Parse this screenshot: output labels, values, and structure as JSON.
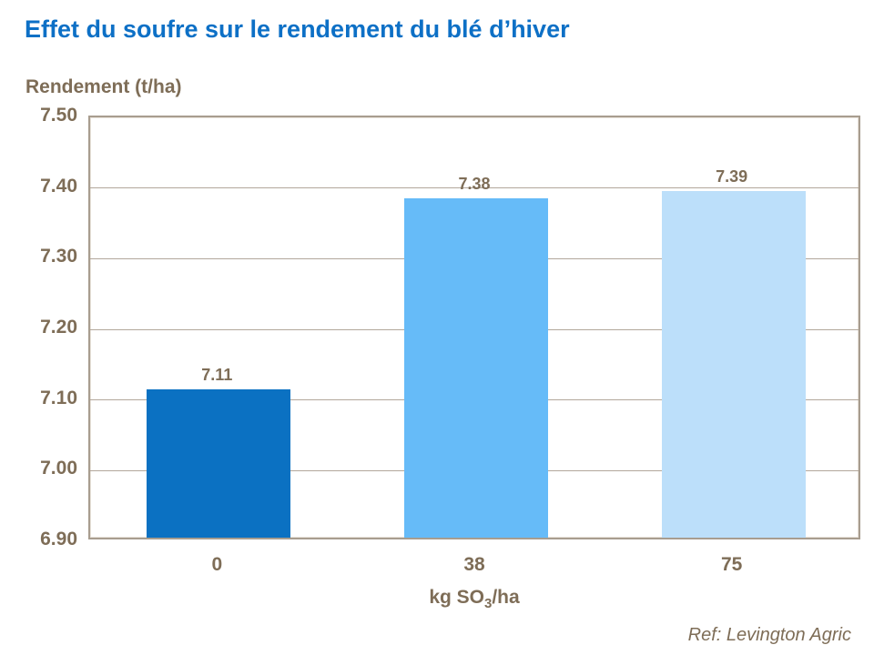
{
  "title": "Effet du soufre sur le rendement du blé d’hiver",
  "y_axis_title": "Rendement (t/ha)",
  "x_axis_title": {
    "prefix": "kg SO",
    "sub": "3",
    "suffix": "/ha"
  },
  "ref_note": "Ref: Levington Agric",
  "colors": {
    "title": "#0d70c6",
    "text": "#7e6d57",
    "grid": "#b2a79b",
    "plot_border": "#a89d8f",
    "background": "#ffffff"
  },
  "chart_data": {
    "type": "bar",
    "title": "Effet du soufre sur le rendement du blé d’hiver",
    "categories": [
      "0",
      "38",
      "75"
    ],
    "values": [
      7.11,
      7.38,
      7.39
    ],
    "value_labels": [
      "7.11",
      "7.38",
      "7.39"
    ],
    "bar_colors": [
      "#0b71c2",
      "#66bbf8",
      "#bcdffa"
    ],
    "xlabel": "kg SO3/ha",
    "ylabel": "Rendement (t/ha)",
    "ylim": [
      6.9,
      7.5
    ],
    "yticks": [
      7.5,
      7.4,
      7.3,
      7.2,
      7.1,
      7.0,
      6.9
    ],
    "ytick_labels": [
      "7.50",
      "7.40",
      "7.30",
      "7.20",
      "7.10",
      "7.00",
      "6.90"
    ],
    "grid": true,
    "legend": "none"
  }
}
